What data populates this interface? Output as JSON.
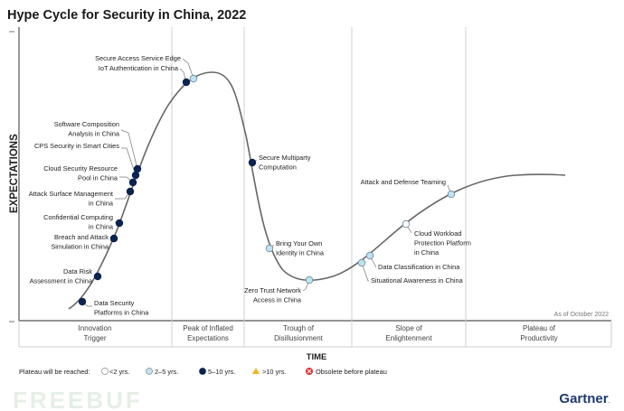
{
  "title": "Hype Cycle for Security in China, 2022",
  "y_axis_label": "EXPECTATIONS",
  "x_axis_label": "TIME",
  "as_of": "As of October 2022",
  "phases": [
    {
      "line1": "Innovation",
      "line2": "Trigger"
    },
    {
      "line1": "Peak of Inflated",
      "line2": "Expectations"
    },
    {
      "line1": "Trough of",
      "line2": "Disillusionment"
    },
    {
      "line1": "Slope of",
      "line2": "Enlightenment"
    },
    {
      "line1": "Plateau of",
      "line2": "Productivity"
    }
  ],
  "legend": {
    "title": "Plateau will be reached:",
    "items": [
      {
        "label": "<2 yrs.",
        "color": "#ffffff"
      },
      {
        "label": "2–5 yrs.",
        "color": "#bfe3f2"
      },
      {
        "label": "5–10 yrs.",
        "color": "#0b2350"
      },
      {
        "label": ">10 yrs.",
        "color": "#f5b323"
      },
      {
        "label": "Obsolete before plateau",
        "color": "#e02b2b"
      }
    ]
  },
  "technologies": [
    {
      "l1": "Data Security",
      "l2": "Platforms in China",
      "years": "5–10 yrs.",
      "phase": "Innovation Trigger"
    },
    {
      "l1": "Data Risk",
      "l2": "Assessment in China",
      "years": "5–10 yrs.",
      "phase": "Innovation Trigger"
    },
    {
      "l1": "Breach and Attack",
      "l2": "Simulation in China",
      "years": "5–10 yrs.",
      "phase": "Innovation Trigger"
    },
    {
      "l1": "Confidential Computing",
      "l2": "in China",
      "years": "5–10 yrs.",
      "phase": "Innovation Trigger"
    },
    {
      "l1": "Attack Surface Management",
      "l2": "in China",
      "years": "5–10 yrs.",
      "phase": "Innovation Trigger"
    },
    {
      "l1": "Cloud Security Resource",
      "l2": "Pool in China",
      "years": "5–10 yrs.",
      "phase": "Innovation Trigger"
    },
    {
      "l1": "CPS Security in Smart Cities",
      "l2": "",
      "years": "5–10 yrs.",
      "phase": "Innovation Trigger"
    },
    {
      "l1": "Software Composition",
      "l2": "Analysis in China",
      "years": "5–10 yrs.",
      "phase": "Innovation Trigger"
    },
    {
      "l1": "IoT Authentication in China",
      "l2": "",
      "years": "5–10 yrs.",
      "phase": "Peak of Inflated Expectations"
    },
    {
      "l1": "Secure Access Service Edge",
      "l2": "",
      "years": "2–5 yrs.",
      "phase": "Peak of Inflated Expectations"
    },
    {
      "l1": "Secure Multiparty",
      "l2": "Computation",
      "years": "5–10 yrs.",
      "phase": "Trough of Disillusionment"
    },
    {
      "l1": "Bring Your Own",
      "l2": "Identity in China",
      "years": "2–5 yrs.",
      "phase": "Trough of Disillusionment"
    },
    {
      "l1": "Zero Trust Network",
      "l2": "Access in China",
      "years": "2–5 yrs.",
      "phase": "Trough of Disillusionment"
    },
    {
      "l1": "Situational Awareness in China",
      "l2": "",
      "years": "2–5 yrs.",
      "phase": "Slope of Enlightenment"
    },
    {
      "l1": "Data Classification in China",
      "l2": "",
      "years": "2–5 yrs.",
      "phase": "Slope of Enlightenment"
    },
    {
      "l1": "Cloud Workload",
      "l2": "Protection Platform",
      "l3": "in China",
      "years": "<2 yrs.",
      "phase": "Slope of Enlightenment"
    },
    {
      "l1": "Attack and Defense Teaming",
      "l2": "",
      "years": "2–5 yrs.",
      "phase": "Slope of Enlightenment"
    }
  ],
  "brand": "Gartner",
  "watermark": "FREEBUF"
}
